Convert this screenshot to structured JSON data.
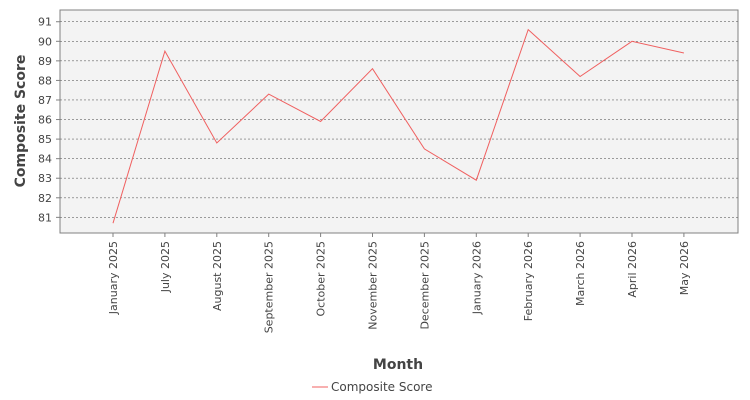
{
  "chart_data": {
    "type": "line",
    "xlabel": "Month",
    "ylabel": "Composite Score",
    "categories": [
      "January 2025",
      "July 2025",
      "August 2025",
      "September 2025",
      "October 2025",
      "November 2025",
      "December 2025",
      "January 2026",
      "February 2026",
      "March 2026",
      "April 2026",
      "May 2026"
    ],
    "series": [
      {
        "name": "Composite Score",
        "color": "#f06060",
        "values": [
          80.7,
          89.5,
          84.8,
          87.3,
          85.9,
          88.6,
          84.5,
          82.9,
          90.6,
          88.2,
          90.0,
          89.4
        ]
      }
    ],
    "yticks": [
      81,
      82,
      83,
      84,
      85,
      86,
      87,
      88,
      89,
      90,
      91
    ],
    "ylim": [
      80.2,
      91.6
    ],
    "grid": true,
    "legend": {
      "position": "bottom-center",
      "entries": [
        "Composite Score"
      ]
    },
    "colors": {
      "plot_background": "#f3f3f3",
      "grid": "#666666",
      "axis": "#808080"
    }
  }
}
